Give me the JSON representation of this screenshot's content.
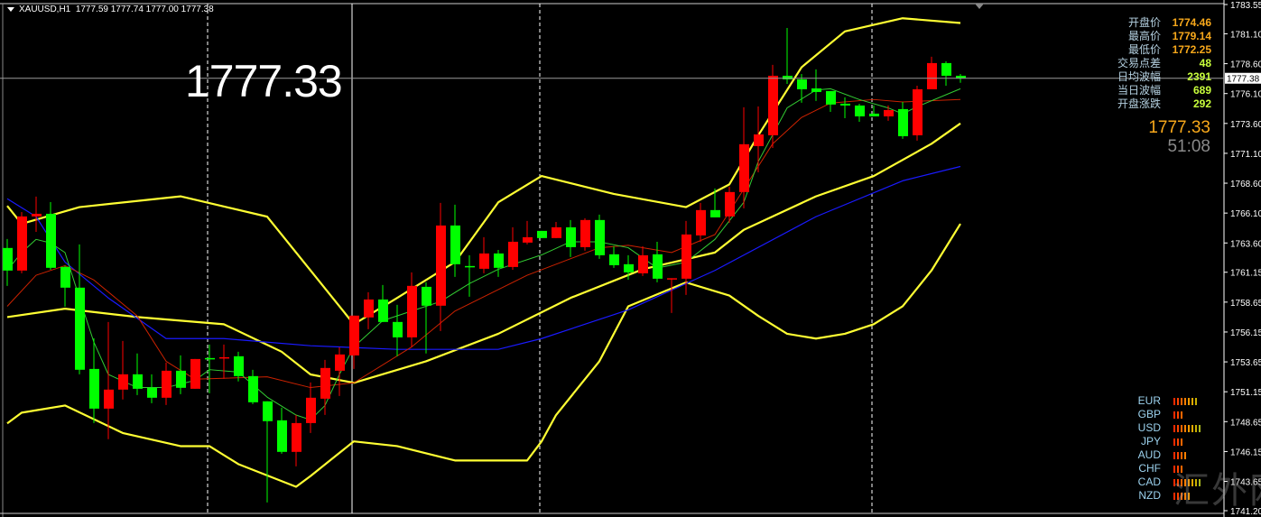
{
  "header": {
    "symbol": "XAUUSD,H1",
    "ohlc": "1777.59 1777.74 1777.00 1777.38"
  },
  "big_price": "1777.33",
  "info_panel": [
    {
      "label": "开盘价",
      "value": "1774.46",
      "color": "orange"
    },
    {
      "label": "最高价",
      "value": "1779.14",
      "color": "orange"
    },
    {
      "label": "最低价",
      "value": "1772.25",
      "color": "orange"
    },
    {
      "label": "交易点差",
      "value": "48",
      "color": "lime"
    },
    {
      "label": "日均波幅",
      "value": "2391",
      "color": "lime"
    },
    {
      "label": "当日波幅",
      "value": "689",
      "color": "lime"
    },
    {
      "label": "开盘涨跌",
      "value": "292",
      "color": "lime"
    }
  ],
  "live_price": "1777.33",
  "bar_timer": "51:08",
  "current_price_tag": "1777.38",
  "currency_strength": [
    {
      "name": "EUR",
      "level": 7
    },
    {
      "name": "GBP",
      "level": 3
    },
    {
      "name": "USD",
      "level": 8
    },
    {
      "name": "JPY",
      "level": 3
    },
    {
      "name": "AUD",
      "level": 4
    },
    {
      "name": "CHF",
      "level": 3
    },
    {
      "name": "CAD",
      "level": 8
    },
    {
      "name": "NZD",
      "level": 5
    }
  ],
  "strength_colors": [
    "#ff2a00",
    "#ff4400",
    "#ff6600",
    "#ff8000",
    "#f59a00",
    "#e0a800",
    "#c8b000",
    "#a8b820"
  ],
  "watermark": "汇外网",
  "colors": {
    "up": "#ff0000",
    "down": "#00ff00",
    "bollinger": "#ffff33",
    "ma_fast": "#33cc33",
    "ma_mid": "#cc2200",
    "ma_slow": "#1a1aff",
    "background": "#000000"
  },
  "chart_data": {
    "type": "candlestick",
    "symbol": "XAUUSD",
    "timeframe": "H1",
    "ylim": [
      1741.2,
      1783.55
    ],
    "y_ticks": [
      "1783.55",
      "1781.10",
      "1778.60",
      "1776.10",
      "1773.60",
      "1771.10",
      "1768.60",
      "1766.10",
      "1763.60",
      "1761.15",
      "1758.65",
      "1756.15",
      "1753.65",
      "1751.15",
      "1748.65",
      "1746.15",
      "1743.65",
      "1741.20"
    ],
    "current_price": 1777.38,
    "candles": [
      [
        1763.18,
        1763.93,
        1760.01,
        1761.29
      ],
      [
        1761.29,
        1766.19,
        1761.06,
        1765.82
      ],
      [
        1765.82,
        1767.48,
        1764.53,
        1766.04
      ],
      [
        1766.04,
        1767.02,
        1761.36,
        1761.52
      ],
      [
        1761.59,
        1761.67,
        1758.27,
        1759.86
      ],
      [
        1759.86,
        1763.48,
        1752.61,
        1752.99
      ],
      [
        1753.06,
        1755.63,
        1748.53,
        1749.74
      ],
      [
        1749.74,
        1756.99,
        1747.18,
        1751.33
      ],
      [
        1751.33,
        1755.4,
        1750.5,
        1752.61
      ],
      [
        1752.61,
        1754.35,
        1750.87,
        1751.4
      ],
      [
        1751.48,
        1752.61,
        1750.19,
        1750.65
      ],
      [
        1750.65,
        1753.59,
        1750.04,
        1752.91
      ],
      [
        1752.91,
        1754.19,
        1750.95,
        1751.48
      ],
      [
        1751.4,
        1753.89,
        1751.4,
        1753.89
      ],
      [
        1753.97,
        1755.1,
        1751.02,
        1753.89
      ],
      [
        1753.97,
        1755.1,
        1752.23,
        1754.04
      ],
      [
        1754.12,
        1754.5,
        1752.01,
        1752.46
      ],
      [
        1752.46,
        1752.99,
        1750.12,
        1750.27
      ],
      [
        1750.35,
        1750.35,
        1741.89,
        1748.69
      ],
      [
        1748.76,
        1749.82,
        1745.97,
        1746.12
      ],
      [
        1746.12,
        1749.21,
        1744.91,
        1748.53
      ],
      [
        1748.53,
        1751.93,
        1747.7,
        1750.65
      ],
      [
        1750.57,
        1753.82,
        1749.21,
        1753.14
      ],
      [
        1752.91,
        1754.87,
        1750.8,
        1754.27
      ],
      [
        1754.19,
        1757.52,
        1753.06,
        1757.52
      ],
      [
        1757.37,
        1759.48,
        1756.38,
        1758.87
      ],
      [
        1758.87,
        1760.08,
        1756.99,
        1756.99
      ],
      [
        1756.99,
        1758.42,
        1754.12,
        1755.7
      ],
      [
        1755.7,
        1761.14,
        1754.87,
        1760.01
      ],
      [
        1759.93,
        1760.31,
        1754.35,
        1758.35
      ],
      [
        1758.35,
        1766.95,
        1756.23,
        1765.06
      ],
      [
        1765.06,
        1766.8,
        1760.76,
        1761.82
      ],
      [
        1761.67,
        1762.57,
        1759.1,
        1761.6
      ],
      [
        1761.44,
        1764.08,
        1761.06,
        1762.72
      ],
      [
        1762.72,
        1763.02,
        1760.76,
        1761.52
      ],
      [
        1761.59,
        1764.91,
        1761.36,
        1763.7
      ],
      [
        1763.63,
        1765.44,
        1763.48,
        1764.08
      ],
      [
        1764.61,
        1764.61,
        1764.01,
        1764.01
      ],
      [
        1764.01,
        1765.36,
        1764.01,
        1764.91
      ],
      [
        1764.91,
        1765.52,
        1762.42,
        1763.25
      ],
      [
        1763.25,
        1765.67,
        1762.95,
        1765.52
      ],
      [
        1765.52,
        1765.97,
        1762.27,
        1762.57
      ],
      [
        1762.65,
        1763.33,
        1761.52,
        1761.74
      ],
      [
        1761.82,
        1762.57,
        1760.53,
        1761.14
      ],
      [
        1761.06,
        1763.33,
        1760.84,
        1762.57
      ],
      [
        1762.65,
        1763.7,
        1760.31,
        1760.61
      ],
      [
        1760.61,
        1760.65,
        1757.74,
        1760.65
      ],
      [
        1760.61,
        1765.44,
        1759.25,
        1764.31
      ],
      [
        1764.23,
        1766.95,
        1763.7,
        1766.35
      ],
      [
        1766.35,
        1768.16,
        1765.74,
        1765.74
      ],
      [
        1765.82,
        1768.31,
        1765.29,
        1767.86
      ],
      [
        1767.86,
        1774.95,
        1766.5,
        1771.86
      ],
      [
        1771.7,
        1775.02,
        1769.51,
        1772.68
      ],
      [
        1772.61,
        1778.5,
        1771.55,
        1777.59
      ],
      [
        1777.59,
        1781.59,
        1776.91,
        1777.29
      ],
      [
        1777.29,
        1777.74,
        1775.33,
        1776.46
      ],
      [
        1776.53,
        1778.12,
        1775.48,
        1776.23
      ],
      [
        1776.31,
        1776.31,
        1774.57,
        1775.18
      ],
      [
        1775.25,
        1775.78,
        1774.04,
        1775.1
      ],
      [
        1775.1,
        1775.25,
        1773.74,
        1774.19
      ],
      [
        1774.42,
        1775.1,
        1774.19,
        1774.19
      ],
      [
        1774.19,
        1775.1,
        1773.82,
        1774.72
      ],
      [
        1774.8,
        1775.4,
        1772.31,
        1772.53
      ],
      [
        1772.61,
        1776.76,
        1772.16,
        1776.46
      ],
      [
        1776.46,
        1779.18,
        1776.46,
        1778.65
      ],
      [
        1778.65,
        1778.8,
        1776.76,
        1777.59
      ],
      [
        1777.59,
        1777.74,
        1777.0,
        1777.38
      ]
    ],
    "indicators": {
      "bollinger_upper": [
        [
          0,
          1766.7
        ],
        [
          1,
          1765.2
        ],
        [
          5,
          1766.6
        ],
        [
          12,
          1767.5
        ],
        [
          18,
          1765.8
        ],
        [
          21,
          1761.3
        ],
        [
          24,
          1756.8
        ],
        [
          27,
          1759.0
        ],
        [
          31,
          1762.0
        ],
        [
          34,
          1767.0
        ],
        [
          37,
          1769.2
        ],
        [
          42,
          1767.7
        ],
        [
          47,
          1766.6
        ],
        [
          50,
          1768.5
        ],
        [
          52,
          1772.6
        ],
        [
          55,
          1778.3
        ],
        [
          58,
          1781.3
        ],
        [
          62,
          1782.4
        ],
        [
          66,
          1782.0
        ]
      ],
      "bollinger_middle": [
        [
          0,
          1757.4
        ],
        [
          4,
          1758.1
        ],
        [
          9,
          1757.4
        ],
        [
          15,
          1756.8
        ],
        [
          19,
          1754.5
        ],
        [
          21,
          1752.6
        ],
        [
          24,
          1751.9
        ],
        [
          29,
          1753.7
        ],
        [
          34,
          1756.0
        ],
        [
          39,
          1759.0
        ],
        [
          44,
          1761.4
        ],
        [
          49,
          1762.8
        ],
        [
          51,
          1764.7
        ],
        [
          56,
          1767.5
        ],
        [
          60,
          1769.2
        ],
        [
          64,
          1771.9
        ],
        [
          66,
          1773.6
        ]
      ],
      "bollinger_lower": [
        [
          0,
          1748.5
        ],
        [
          1,
          1749.4
        ],
        [
          4,
          1750.0
        ],
        [
          8,
          1747.7
        ],
        [
          12,
          1746.6
        ],
        [
          14,
          1746.6
        ],
        [
          16,
          1745.1
        ],
        [
          20,
          1743.2
        ],
        [
          21,
          1744.1
        ],
        [
          24,
          1747.0
        ],
        [
          27,
          1746.6
        ],
        [
          31,
          1745.4
        ],
        [
          36,
          1745.4
        ],
        [
          37,
          1747.0
        ],
        [
          38,
          1749.2
        ],
        [
          41,
          1753.7
        ],
        [
          43,
          1758.3
        ],
        [
          47,
          1760.3
        ],
        [
          50,
          1759.2
        ],
        [
          52,
          1757.5
        ],
        [
          54,
          1756.0
        ],
        [
          56,
          1755.6
        ],
        [
          58,
          1756.0
        ],
        [
          60,
          1756.8
        ],
        [
          62,
          1758.3
        ],
        [
          64,
          1761.3
        ],
        [
          66,
          1765.2
        ]
      ],
      "ma_slow": [
        [
          0,
          1767.3
        ],
        [
          2,
          1765.8
        ],
        [
          4,
          1762.0
        ],
        [
          7,
          1759.0
        ],
        [
          11,
          1755.6
        ],
        [
          15,
          1755.6
        ],
        [
          21,
          1755.0
        ],
        [
          27,
          1754.7
        ],
        [
          34,
          1754.7
        ],
        [
          37,
          1755.6
        ],
        [
          43,
          1758.0
        ],
        [
          49,
          1761.3
        ],
        [
          56,
          1765.8
        ],
        [
          62,
          1768.8
        ],
        [
          66,
          1770.0
        ]
      ],
      "ma_mid": [
        [
          0,
          1758.3
        ],
        [
          2,
          1760.9
        ],
        [
          4,
          1761.7
        ],
        [
          6,
          1760.5
        ],
        [
          9,
          1757.5
        ],
        [
          11,
          1753.7
        ],
        [
          13,
          1752.2
        ],
        [
          18,
          1752.4
        ],
        [
          21,
          1751.5
        ],
        [
          24,
          1751.9
        ],
        [
          28,
          1754.9
        ],
        [
          31,
          1757.9
        ],
        [
          36,
          1760.9
        ],
        [
          41,
          1763.2
        ],
        [
          43,
          1763.4
        ],
        [
          46,
          1762.8
        ],
        [
          49,
          1764.3
        ],
        [
          51,
          1768.1
        ],
        [
          53,
          1771.9
        ],
        [
          55,
          1774.1
        ],
        [
          57,
          1775.3
        ],
        [
          60,
          1775.6
        ],
        [
          62,
          1775.4
        ],
        [
          66,
          1775.6
        ]
      ],
      "ma_fast": [
        [
          0,
          1761.3
        ],
        [
          1,
          1762.8
        ],
        [
          2,
          1763.9
        ],
        [
          3,
          1763.6
        ],
        [
          4,
          1762.8
        ],
        [
          5,
          1759.0
        ],
        [
          6,
          1755.3
        ],
        [
          7,
          1752.6
        ],
        [
          9,
          1751.5
        ],
        [
          11,
          1751.5
        ],
        [
          13,
          1752.1
        ],
        [
          14,
          1753.0
        ],
        [
          16,
          1752.8
        ],
        [
          18,
          1750.7
        ],
        [
          20,
          1749.2
        ],
        [
          21,
          1748.8
        ],
        [
          22,
          1750.0
        ],
        [
          23,
          1752.6
        ],
        [
          24,
          1754.9
        ],
        [
          26,
          1757.1
        ],
        [
          28,
          1757.9
        ],
        [
          30,
          1758.7
        ],
        [
          32,
          1760.2
        ],
        [
          34,
          1761.4
        ],
        [
          37,
          1762.6
        ],
        [
          39,
          1763.7
        ],
        [
          41,
          1763.7
        ],
        [
          43,
          1763.2
        ],
        [
          45,
          1761.5
        ],
        [
          47,
          1762.0
        ],
        [
          49,
          1763.9
        ],
        [
          51,
          1767.0
        ],
        [
          52,
          1770.4
        ],
        [
          54,
          1774.9
        ],
        [
          56,
          1776.4
        ],
        [
          57,
          1776.5
        ],
        [
          59,
          1775.6
        ],
        [
          61,
          1774.9
        ],
        [
          62,
          1774.4
        ],
        [
          63,
          1775.0
        ],
        [
          66,
          1776.5
        ]
      ]
    }
  }
}
